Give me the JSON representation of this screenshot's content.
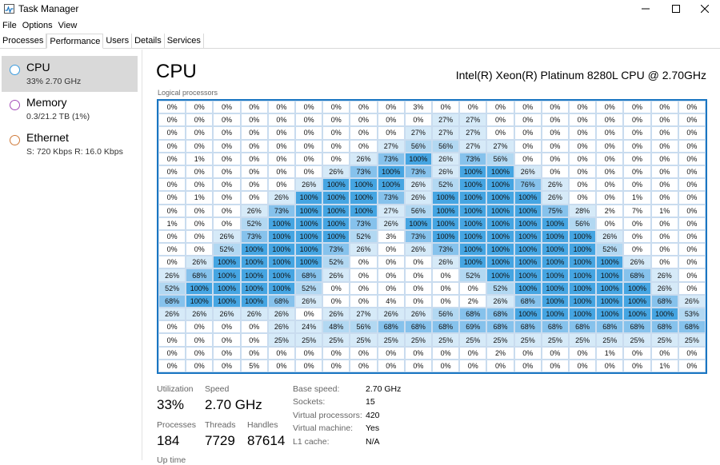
{
  "window": {
    "title": "Task Manager",
    "icon": "task-manager-icon"
  },
  "menu": [
    "File",
    "Options",
    "View"
  ],
  "tabs": [
    {
      "label": "Processes",
      "active": false
    },
    {
      "label": "Performance",
      "active": true
    },
    {
      "label": "Users",
      "active": false
    },
    {
      "label": "Details",
      "active": false
    },
    {
      "label": "Services",
      "active": false
    }
  ],
  "sidebar": [
    {
      "title": "CPU",
      "subtitle": "33% 2.70 GHz",
      "color": "#3c9de0",
      "selected": true
    },
    {
      "title": "Memory",
      "subtitle": "0.3/21.2 TB (1%)",
      "color": "#a34bb8",
      "selected": false
    },
    {
      "title": "Ethernet",
      "subtitle": "S: 720 Kbps R: 16.0 Kbps",
      "color": "#d07a3a",
      "selected": false
    }
  ],
  "main": {
    "title": "CPU",
    "model": "Intel(R) Xeon(R) Platinum 8280L CPU @ 2.70GHz",
    "grid_label": "Logical processors"
  },
  "grid": {
    "columns": 20,
    "colors": {
      "low": "#ffffff",
      "light": "#d6eaf8",
      "medium": "#b2d8f2",
      "high": "#86c2ec",
      "full": "#45a5e2",
      "accent": "#1a76c2"
    },
    "rows": [
      [
        "0%",
        "0%",
        "0%",
        "0%",
        "0%",
        "0%",
        "0%",
        "0%",
        "0%",
        "3%",
        "0%",
        "0%",
        "0%",
        "0%",
        "0%",
        "0%",
        "0%",
        "0%",
        "0%",
        "0%"
      ],
      [
        "0%",
        "0%",
        "0%",
        "0%",
        "0%",
        "0%",
        "0%",
        "0%",
        "0%",
        "0%",
        "27%",
        "27%",
        "0%",
        "0%",
        "0%",
        "0%",
        "0%",
        "0%",
        "0%",
        "0%"
      ],
      [
        "0%",
        "0%",
        "0%",
        "0%",
        "0%",
        "0%",
        "0%",
        "0%",
        "0%",
        "27%",
        "27%",
        "27%",
        "0%",
        "0%",
        "0%",
        "0%",
        "0%",
        "0%",
        "0%",
        "0%"
      ],
      [
        "0%",
        "0%",
        "0%",
        "0%",
        "0%",
        "0%",
        "0%",
        "0%",
        "27%",
        "56%",
        "56%",
        "27%",
        "27%",
        "0%",
        "0%",
        "0%",
        "0%",
        "0%",
        "0%",
        "0%"
      ],
      [
        "0%",
        "1%",
        "0%",
        "0%",
        "0%",
        "0%",
        "0%",
        "26%",
        "73%",
        "100%",
        "26%",
        "73%",
        "56%",
        "0%",
        "0%",
        "0%",
        "0%",
        "0%",
        "0%",
        "0%"
      ],
      [
        "0%",
        "0%",
        "0%",
        "0%",
        "0%",
        "0%",
        "26%",
        "73%",
        "100%",
        "73%",
        "26%",
        "100%",
        "100%",
        "26%",
        "0%",
        "0%",
        "0%",
        "0%",
        "0%",
        "0%"
      ],
      [
        "0%",
        "0%",
        "0%",
        "0%",
        "0%",
        "26%",
        "100%",
        "100%",
        "100%",
        "26%",
        "52%",
        "100%",
        "100%",
        "76%",
        "26%",
        "0%",
        "0%",
        "0%",
        "0%",
        "0%"
      ],
      [
        "0%",
        "1%",
        "0%",
        "0%",
        "26%",
        "100%",
        "100%",
        "100%",
        "73%",
        "26%",
        "100%",
        "100%",
        "100%",
        "100%",
        "26%",
        "0%",
        "0%",
        "1%",
        "0%",
        "0%"
      ],
      [
        "0%",
        "0%",
        "0%",
        "26%",
        "73%",
        "100%",
        "100%",
        "100%",
        "27%",
        "56%",
        "100%",
        "100%",
        "100%",
        "100%",
        "75%",
        "28%",
        "2%",
        "7%",
        "1%",
        "0%"
      ],
      [
        "1%",
        "0%",
        "0%",
        "52%",
        "100%",
        "100%",
        "100%",
        "73%",
        "26%",
        "100%",
        "100%",
        "100%",
        "100%",
        "100%",
        "100%",
        "56%",
        "0%",
        "0%",
        "0%",
        "0%"
      ],
      [
        "0%",
        "0%",
        "26%",
        "73%",
        "100%",
        "100%",
        "100%",
        "52%",
        "3%",
        "73%",
        "100%",
        "100%",
        "100%",
        "100%",
        "100%",
        "100%",
        "26%",
        "0%",
        "0%",
        "0%"
      ],
      [
        "0%",
        "0%",
        "52%",
        "100%",
        "100%",
        "100%",
        "73%",
        "26%",
        "0%",
        "26%",
        "73%",
        "100%",
        "100%",
        "100%",
        "100%",
        "100%",
        "52%",
        "0%",
        "0%",
        "0%"
      ],
      [
        "0%",
        "26%",
        "100%",
        "100%",
        "100%",
        "100%",
        "52%",
        "0%",
        "0%",
        "0%",
        "26%",
        "100%",
        "100%",
        "100%",
        "100%",
        "100%",
        "100%",
        "26%",
        "0%",
        "0%"
      ],
      [
        "26%",
        "68%",
        "100%",
        "100%",
        "100%",
        "68%",
        "26%",
        "0%",
        "0%",
        "0%",
        "0%",
        "52%",
        "100%",
        "100%",
        "100%",
        "100%",
        "100%",
        "68%",
        "26%",
        "0%"
      ],
      [
        "52%",
        "100%",
        "100%",
        "100%",
        "100%",
        "52%",
        "0%",
        "0%",
        "0%",
        "0%",
        "0%",
        "0%",
        "52%",
        "100%",
        "100%",
        "100%",
        "100%",
        "100%",
        "26%",
        "0%"
      ],
      [
        "68%",
        "100%",
        "100%",
        "100%",
        "68%",
        "26%",
        "0%",
        "0%",
        "4%",
        "0%",
        "0%",
        "2%",
        "26%",
        "68%",
        "100%",
        "100%",
        "100%",
        "100%",
        "68%",
        "26%"
      ],
      [
        "26%",
        "26%",
        "26%",
        "26%",
        "26%",
        "0%",
        "26%",
        "27%",
        "26%",
        "26%",
        "56%",
        "68%",
        "68%",
        "100%",
        "100%",
        "100%",
        "100%",
        "100%",
        "100%",
        "53%"
      ],
      [
        "0%",
        "0%",
        "0%",
        "0%",
        "26%",
        "24%",
        "48%",
        "56%",
        "68%",
        "68%",
        "68%",
        "69%",
        "68%",
        "68%",
        "68%",
        "68%",
        "68%",
        "68%",
        "68%",
        "68%"
      ],
      [
        "0%",
        "0%",
        "0%",
        "0%",
        "25%",
        "25%",
        "25%",
        "25%",
        "25%",
        "25%",
        "25%",
        "25%",
        "25%",
        "25%",
        "25%",
        "25%",
        "25%",
        "25%",
        "25%",
        "25%"
      ],
      [
        "0%",
        "0%",
        "0%",
        "0%",
        "0%",
        "0%",
        "0%",
        "0%",
        "0%",
        "0%",
        "0%",
        "0%",
        "2%",
        "0%",
        "0%",
        "0%",
        "1%",
        "0%",
        "0%",
        "0%"
      ],
      [
        "0%",
        "0%",
        "0%",
        "5%",
        "0%",
        "0%",
        "0%",
        "0%",
        "0%",
        "0%",
        "0%",
        "0%",
        "0%",
        "0%",
        "0%",
        "0%",
        "0%",
        "0%",
        "1%",
        "0%"
      ]
    ]
  },
  "stats": {
    "utilization_label": "Utilization",
    "utilization": "33%",
    "speed_label": "Speed",
    "speed": "2.70 GHz",
    "processes_label": "Processes",
    "processes": "184",
    "threads_label": "Threads",
    "threads": "7729",
    "handles_label": "Handles",
    "handles": "87614",
    "uptime_label": "Up time"
  },
  "details": [
    {
      "label": "Base speed:",
      "value": "2.70 GHz"
    },
    {
      "label": "Sockets:",
      "value": "15"
    },
    {
      "label": "Virtual processors:",
      "value": "420"
    },
    {
      "label": "Virtual machine:",
      "value": "Yes"
    },
    {
      "label": "L1 cache:",
      "value": "N/A"
    }
  ]
}
